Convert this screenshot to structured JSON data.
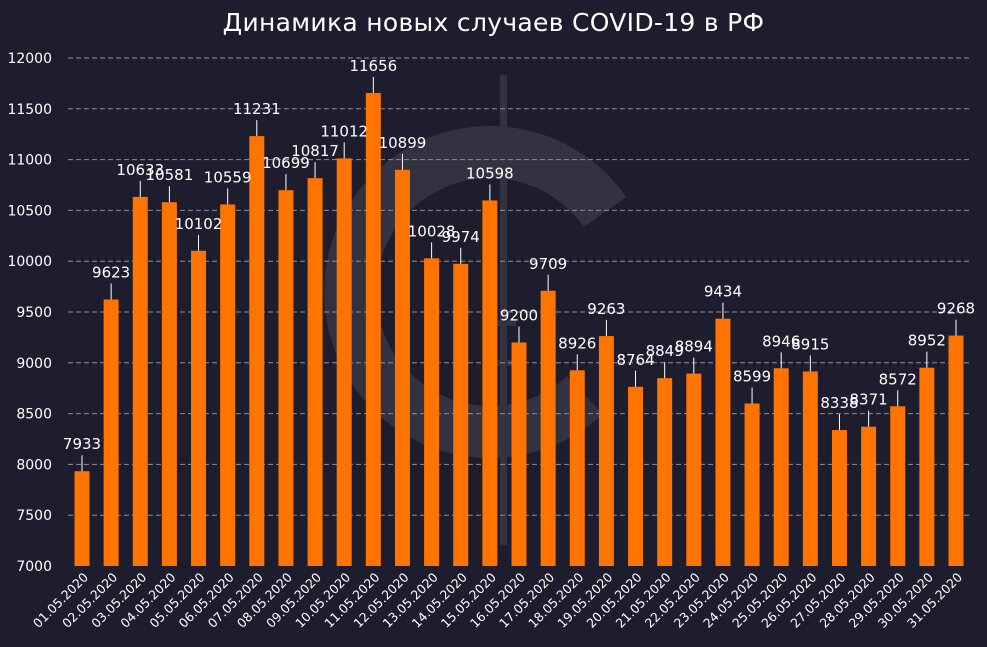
{
  "chart_data": {
    "type": "bar",
    "title": "Динамика новых случаев COVID-19 в РФ",
    "xlabel": "",
    "ylabel": "",
    "ylim": [
      7000,
      12000
    ],
    "yticks": [
      7000,
      7500,
      8000,
      8500,
      9000,
      9500,
      10000,
      10500,
      11000,
      11500,
      12000
    ],
    "grid": true,
    "bar_color": "#ff7300",
    "background": "#1e1d2d",
    "categories": [
      "01.05.2020",
      "02.05.2020",
      "03.05.2020",
      "04.05.2020",
      "05.05.2020",
      "06.05.2020",
      "07.05.2020",
      "08.05.2020",
      "09.05.2020",
      "10.05.2020",
      "11.05.2020",
      "12.05.2020",
      "13.05.2020",
      "14.05.2020",
      "15.05.2020",
      "16.05.2020",
      "17.05.2020",
      "18.05.2020",
      "19.05.2020",
      "20.05.2020",
      "21.05.2020",
      "22.05.2020",
      "23.05.2020",
      "24.05.2020",
      "25.05.2020",
      "26.05.2020",
      "27.05.2020",
      "28.05.2020",
      "29.05.2020",
      "30.05.2020",
      "31.05.2020"
    ],
    "values": [
      7933,
      9623,
      10633,
      10581,
      10102,
      10559,
      11231,
      10699,
      10817,
      11012,
      11656,
      10899,
      10028,
      9974,
      10598,
      9200,
      9709,
      8926,
      9263,
      8764,
      8849,
      8894,
      9434,
      8599,
      8946,
      8915,
      8338,
      8371,
      8572,
      8952,
      9268
    ]
  }
}
